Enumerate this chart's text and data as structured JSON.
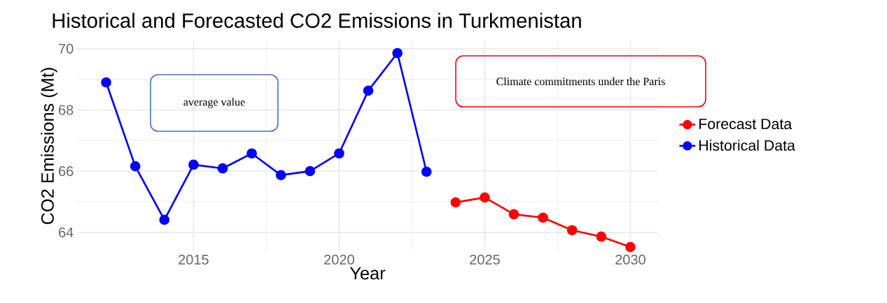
{
  "chart_data": {
    "type": "line",
    "title": "Historical and Forecasted CO2 Emissions in Turkmenistan",
    "xlabel": "Year",
    "ylabel": "CO2 Emissions (Mt)",
    "annotations": [
      "average value",
      "Climate commitments under the Paris"
    ],
    "series": [
      {
        "name": "Forecast Data",
        "color": "#ff0000",
        "x": [
          2024,
          2025,
          2026,
          2027,
          2028,
          2029,
          2030
        ],
        "values": [
          64.98,
          65.14,
          64.59,
          64.48,
          64.07,
          63.86,
          63.52
        ]
      },
      {
        "name": "Historical Data",
        "color": "#0000ff",
        "x": [
          2012,
          2013,
          2014,
          2015,
          2016,
          2017,
          2018,
          2019,
          2020,
          2021,
          2022,
          2023
        ],
        "values": [
          68.9,
          66.16,
          64.41,
          66.21,
          66.09,
          66.58,
          65.87,
          66.0,
          66.58,
          68.63,
          69.86,
          65.98
        ]
      }
    ],
    "xlim": [
      2011.0,
      2030.95
    ],
    "ylim": [
      63.38,
      70.27
    ],
    "xticks": [
      2015,
      2020,
      2025,
      2030
    ],
    "yticks": [
      64,
      66,
      68,
      70
    ],
    "grid": true,
    "legend": "right",
    "marker": "circle",
    "line_style": "solid"
  }
}
